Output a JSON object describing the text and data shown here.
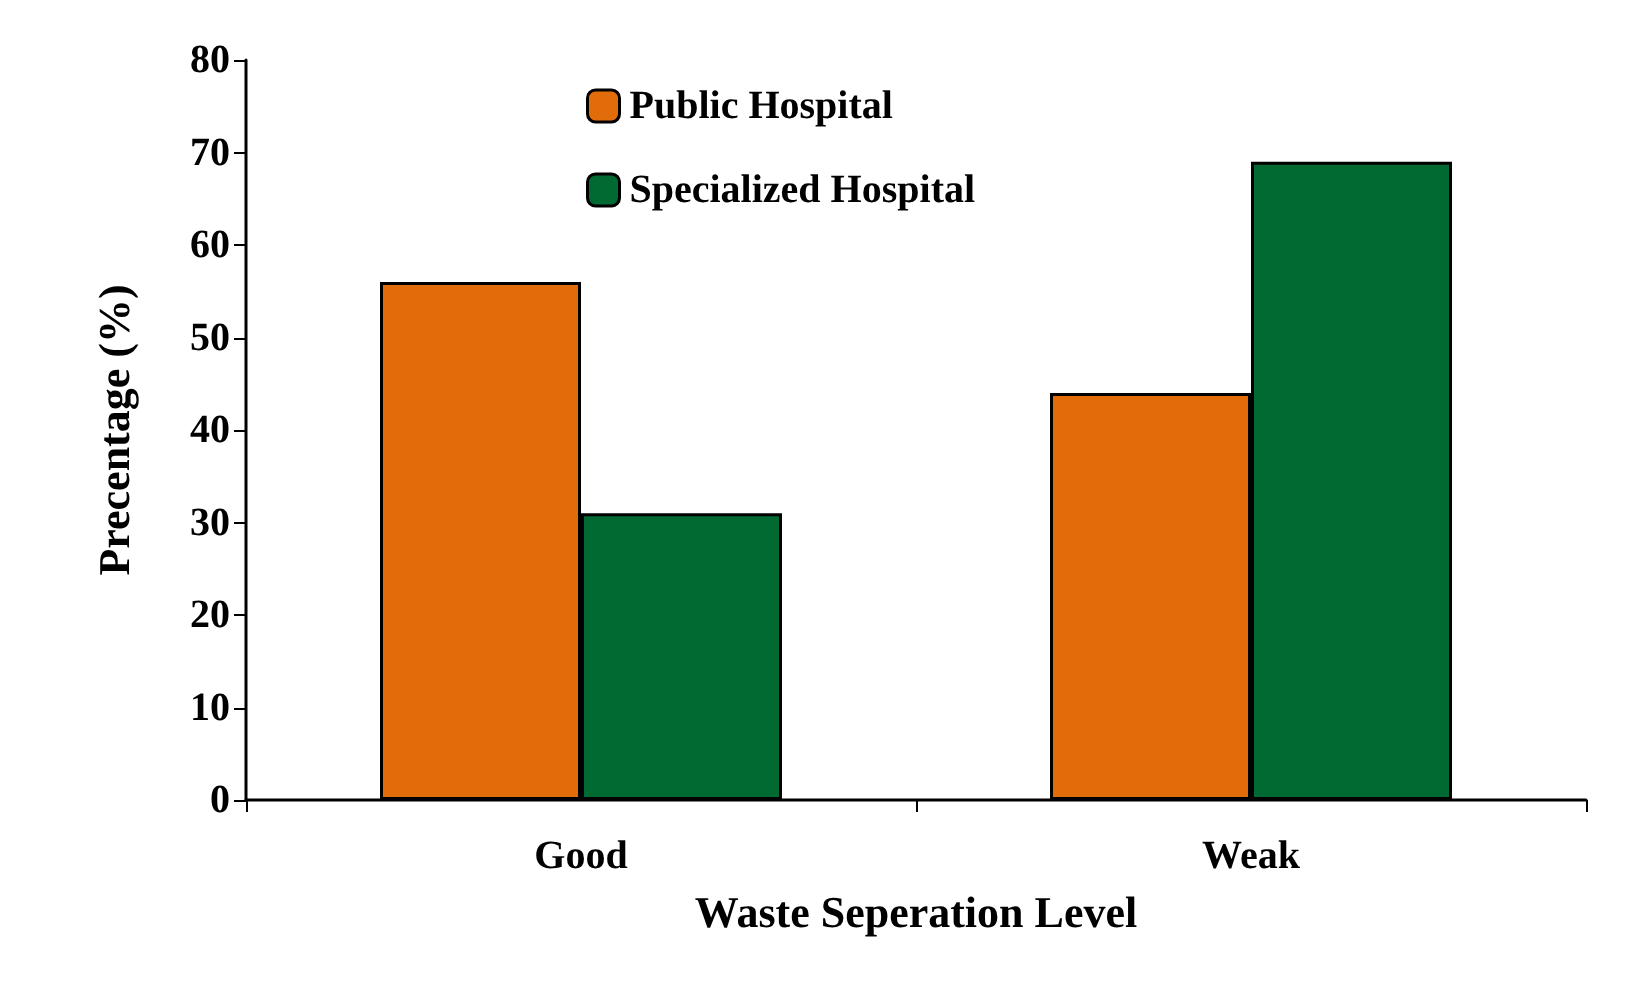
{
  "chart_data": {
    "type": "bar",
    "xlabel": "Waste Seperation Level",
    "ylabel": "Precentage (%)",
    "categories": [
      "Good",
      "Weak"
    ],
    "series": [
      {
        "name": "Public Hospital",
        "color": "#e36c0a",
        "values": [
          56,
          44
        ]
      },
      {
        "name": "Specialized Hospital",
        "color": "#006a32",
        "values": [
          31,
          69
        ]
      }
    ],
    "ylim": [
      0,
      80
    ],
    "yticks": [
      0,
      10,
      20,
      30,
      40,
      50,
      60,
      70,
      80
    ],
    "grid": false,
    "legend": "top"
  }
}
